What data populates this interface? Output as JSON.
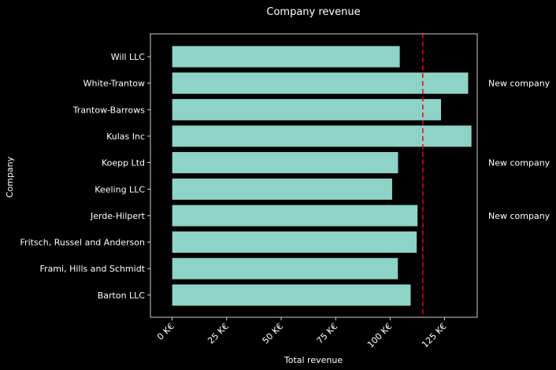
{
  "chart_data": {
    "type": "bar",
    "orientation": "horizontal",
    "title": "Company revenue",
    "xlabel": "Total revenue",
    "ylabel": "Company",
    "categories": [
      "Barton LLC",
      "Frami, Hills and Schmidt",
      "Fritsch, Russel and Anderson",
      "Jerde-Hilpert",
      "Keeling LLC",
      "Koepp Ltd",
      "Kulas Inc",
      "Trantow-Barrows",
      "White-Trantow",
      "Will LLC"
    ],
    "values": [
      109438,
      103569,
      112214,
      112591,
      100934,
      103660,
      137351,
      123381,
      135841,
      104437
    ],
    "xlim": [
      -10000,
      140000
    ],
    "xticks": [
      0,
      25000,
      50000,
      75000,
      100000,
      125000
    ],
    "xtick_labels": [
      "0 K€",
      "25 K€",
      "50 K€",
      "75 K€",
      "100 K€",
      "125 K€"
    ],
    "reference_line": {
      "value": 115000,
      "style": "dashed",
      "color": "#ff0000"
    },
    "annotations": [
      {
        "category": "White-Trantow",
        "text": "New company"
      },
      {
        "category": "Koepp Ltd",
        "text": "New company"
      },
      {
        "category": "Jerde-Hilpert",
        "text": "New company"
      }
    ],
    "bar_color": "#8dd3c7",
    "grid": false
  }
}
